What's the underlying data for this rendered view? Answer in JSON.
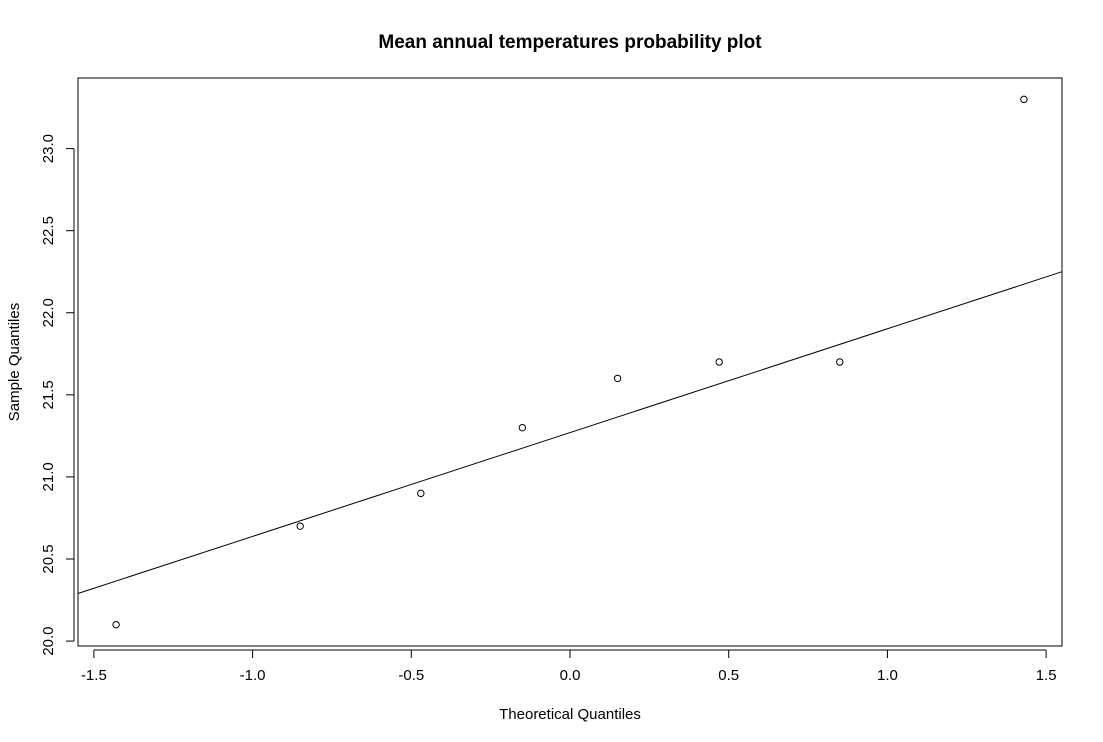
{
  "chart_data": {
    "type": "scatter",
    "title": "Mean annual temperatures probability plot",
    "xlabel": "Theoretical Quantiles",
    "ylabel": "Sample Quantiles",
    "xlim": [
      -1.55,
      1.55
    ],
    "ylim": [
      19.97,
      23.43
    ],
    "x_ticks": [
      -1.5,
      -1.0,
      -0.5,
      0.0,
      0.5,
      1.0,
      1.5
    ],
    "x_tick_labels": [
      "-1.5",
      "-1.0",
      "-0.5",
      "0.0",
      "0.5",
      "1.0",
      "1.5"
    ],
    "y_ticks": [
      20.0,
      20.5,
      21.0,
      21.5,
      22.0,
      22.5,
      23.0
    ],
    "y_tick_labels": [
      "20.0",
      "20.5",
      "21.0",
      "21.5",
      "22.0",
      "22.5",
      "23.0"
    ],
    "grid": false,
    "legend": "none",
    "points": [
      {
        "x": -1.43,
        "y": 20.1
      },
      {
        "x": -0.85,
        "y": 20.7
      },
      {
        "x": -0.47,
        "y": 20.9
      },
      {
        "x": -0.15,
        "y": 21.3
      },
      {
        "x": 0.15,
        "y": 21.6
      },
      {
        "x": 0.47,
        "y": 21.7
      },
      {
        "x": 0.85,
        "y": 21.7
      },
      {
        "x": 1.43,
        "y": 23.3
      }
    ],
    "reference_line": {
      "x": [
        -1.55,
        1.55
      ],
      "y": [
        20.29,
        22.25
      ]
    },
    "colors": {
      "points": "#000000",
      "line": "#000000",
      "axes": "#000000",
      "background": "#ffffff"
    }
  }
}
